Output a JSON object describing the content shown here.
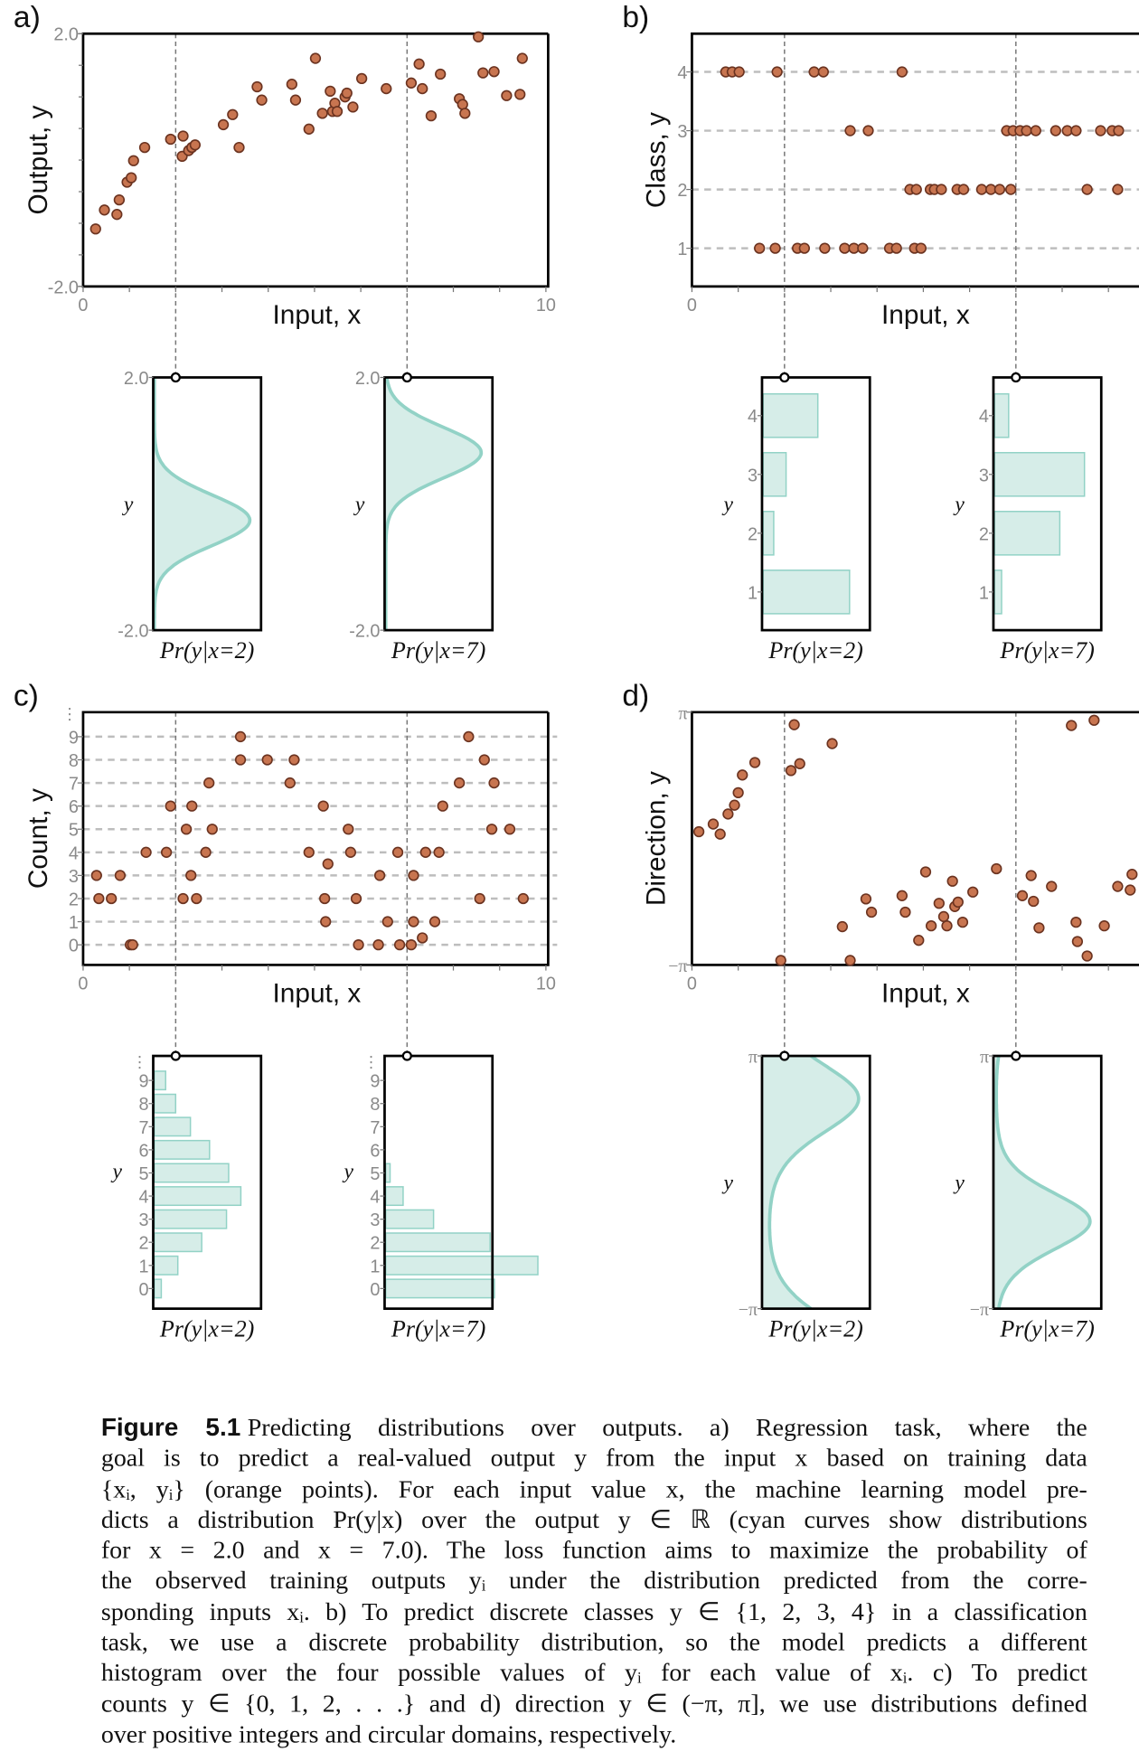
{
  "figure": {
    "label": "Figure 5.1",
    "caption_lines": [
      "Predicting distributions over outputs.  a) Regression task, where the",
      "goal is to predict a real-valued output y from the input x based on training data",
      "{xᵢ, yᵢ} (orange points). For each input value x, the machine learning model pre-",
      "dicts a distribution Pr(y|x) over the output y ∈ ℝ (cyan curves show distributions",
      "for x = 2.0 and x = 7.0).  The loss function aims to maximize the probability of",
      "the observed training outputs yᵢ under the distribution predicted from the corre-",
      "sponding inputs xᵢ.  b) To predict discrete classes y ∈ {1, 2, 3, 4} in a classification",
      "task, we use a discrete probability distribution, so the model predicts a different",
      "histogram over the four possible values of yᵢ for each value of xᵢ.  c) To predict",
      "counts y ∈ {0, 1, 2, . . .} and d) direction y ∈ (−π, π], we use distributions defined",
      "over positive integers and circular domains, respectively."
    ]
  },
  "colors": {
    "points_fill": "#c87550",
    "points_stroke": "#6b3320",
    "dist_fill": "#d6ede8",
    "dist_stroke": "#92d2c6",
    "tick_text": "#8a8a8a"
  },
  "chart_data": [
    {
      "panel": "a)",
      "type": "scatter",
      "task": "regression",
      "xlabel": "Input, x",
      "ylabel": "Output, y",
      "xlim": [
        0,
        10
      ],
      "ylim": [
        -2,
        2
      ],
      "xticks": [
        {
          "v": 0,
          "label": "0"
        },
        {
          "v": 10,
          "label": "10"
        }
      ],
      "yticks": [
        {
          "v": 2,
          "label": "2.0"
        },
        {
          "v": -2,
          "label": "-2.0"
        }
      ],
      "points": [
        [
          0.27,
          -1.09
        ],
        [
          0.46,
          -0.79
        ],
        [
          0.73,
          -0.86
        ],
        [
          0.78,
          -0.63
        ],
        [
          0.95,
          -0.35
        ],
        [
          1.04,
          -0.28
        ],
        [
          1.09,
          -0.01
        ],
        [
          1.33,
          0.2
        ],
        [
          1.89,
          0.33
        ],
        [
          2.14,
          0.06
        ],
        [
          2.16,
          0.38
        ],
        [
          2.28,
          0.15
        ],
        [
          2.35,
          0.2
        ],
        [
          2.42,
          0.24
        ],
        [
          3.03,
          0.56
        ],
        [
          3.23,
          0.72
        ],
        [
          3.37,
          0.2
        ],
        [
          3.76,
          1.16
        ],
        [
          3.86,
          0.95
        ],
        [
          4.51,
          1.2
        ],
        [
          4.59,
          0.95
        ],
        [
          4.88,
          0.49
        ],
        [
          5.02,
          1.61
        ],
        [
          5.17,
          0.74
        ],
        [
          5.34,
          1.09
        ],
        [
          5.39,
          0.77
        ],
        [
          5.44,
          0.9
        ],
        [
          5.49,
          0.77
        ],
        [
          5.66,
          1.0
        ],
        [
          5.7,
          1.06
        ],
        [
          5.83,
          0.84
        ],
        [
          6.02,
          1.29
        ],
        [
          6.55,
          1.13
        ],
        [
          7.09,
          1.22
        ],
        [
          7.26,
          1.52
        ],
        [
          7.33,
          1.13
        ],
        [
          7.52,
          0.7
        ],
        [
          7.72,
          1.36
        ],
        [
          8.13,
          0.97
        ],
        [
          8.2,
          0.88
        ],
        [
          8.25,
          0.74
        ],
        [
          8.54,
          1.95
        ],
        [
          8.64,
          1.38
        ],
        [
          8.88,
          1.4
        ],
        [
          9.15,
          1.02
        ],
        [
          9.44,
          1.04
        ],
        [
          9.49,
          1.61
        ]
      ],
      "slices": [
        {
          "x": 2,
          "label": "Pr(y|x=2)",
          "ylabel": "y",
          "yticks": [
            {
              "v": 2,
              "label": "2.0"
            },
            {
              "v": -2,
              "label": "-2.0"
            }
          ],
          "dist": {
            "kind": "normal",
            "mean": -0.26,
            "sd": 0.4
          }
        },
        {
          "x": 7,
          "label": "Pr(y|x=7)",
          "ylabel": "y",
          "yticks": [
            {
              "v": 2,
              "label": "2.0"
            },
            {
              "v": -2,
              "label": "-2.0"
            }
          ],
          "dist": {
            "kind": "normal",
            "mean": 0.81,
            "sd": 0.4
          }
        }
      ]
    },
    {
      "panel": "b)",
      "type": "scatter",
      "task": "classification",
      "xlabel": "Input, x",
      "ylabel": "Class, y",
      "xlim": [
        0,
        10
      ],
      "ylim": [
        0.35,
        4.65
      ],
      "levels": [
        1,
        2,
        3,
        4
      ],
      "xticks": [
        {
          "v": 0,
          "label": "0"
        }
      ],
      "yticks": [
        {
          "v": 1,
          "label": "1"
        },
        {
          "v": 2,
          "label": "2"
        },
        {
          "v": 3,
          "label": "3"
        },
        {
          "v": 4,
          "label": "4"
        }
      ],
      "points": [
        [
          0.73,
          4
        ],
        [
          0.87,
          4
        ],
        [
          1.02,
          4
        ],
        [
          1.84,
          4
        ],
        [
          2.64,
          4
        ],
        [
          2.84,
          4
        ],
        [
          4.54,
          4
        ],
        [
          3.42,
          3
        ],
        [
          3.81,
          3
        ],
        [
          6.8,
          3
        ],
        [
          6.94,
          3
        ],
        [
          7.09,
          3
        ],
        [
          7.23,
          3
        ],
        [
          7.43,
          3
        ],
        [
          7.86,
          3
        ],
        [
          8.11,
          3
        ],
        [
          8.3,
          3
        ],
        [
          8.83,
          3
        ],
        [
          9.08,
          3
        ],
        [
          9.22,
          3
        ],
        [
          4.71,
          2
        ],
        [
          4.85,
          2
        ],
        [
          5.15,
          2
        ],
        [
          5.24,
          2
        ],
        [
          5.39,
          2
        ],
        [
          5.73,
          2
        ],
        [
          5.87,
          2
        ],
        [
          6.26,
          2
        ],
        [
          6.46,
          2
        ],
        [
          6.65,
          2
        ],
        [
          6.89,
          2
        ],
        [
          8.54,
          2
        ],
        [
          9.2,
          2
        ],
        [
          1.46,
          1
        ],
        [
          1.8,
          1
        ],
        [
          2.28,
          1
        ],
        [
          2.43,
          1
        ],
        [
          2.87,
          1
        ],
        [
          3.3,
          1
        ],
        [
          3.5,
          1
        ],
        [
          3.69,
          1
        ],
        [
          4.27,
          1
        ],
        [
          4.42,
          1
        ],
        [
          4.81,
          1
        ],
        [
          4.95,
          1
        ]
      ],
      "slices": [
        {
          "x": 2,
          "label": "Pr(y|x=2)",
          "ylabel": "y",
          "yticks": [
            {
              "v": 1,
              "label": "1"
            },
            {
              "v": 2,
              "label": "2"
            },
            {
              "v": 3,
              "label": "3"
            },
            {
              "v": 4,
              "label": "4"
            }
          ],
          "dist": {
            "kind": "categorical",
            "values": [
              1,
              2,
              3,
              4
            ],
            "probs": [
              0.49,
              0.06,
              0.13,
              0.31
            ]
          }
        },
        {
          "x": 7,
          "label": "Pr(y|x=7)",
          "ylabel": "y",
          "yticks": [
            {
              "v": 1,
              "label": "1"
            },
            {
              "v": 2,
              "label": "2"
            },
            {
              "v": 3,
              "label": "3"
            },
            {
              "v": 4,
              "label": "4"
            }
          ],
          "dist": {
            "kind": "categorical",
            "values": [
              1,
              2,
              3,
              4
            ],
            "probs": [
              0.04,
              0.37,
              0.51,
              0.08
            ]
          }
        }
      ]
    },
    {
      "panel": "c)",
      "type": "scatter",
      "task": "count",
      "xlabel": "Input, x",
      "ylabel": "Count, y",
      "xlim": [
        0,
        10
      ],
      "ylim": [
        -0.87,
        10.06
      ],
      "levels": [
        0,
        1,
        2,
        3,
        4,
        5,
        6,
        7,
        8,
        9
      ],
      "xticks": [
        {
          "v": 0,
          "label": "0"
        },
        {
          "v": 10,
          "label": "10"
        }
      ],
      "yticks": [
        {
          "v": 0,
          "label": "0"
        },
        {
          "v": 1,
          "label": "1"
        },
        {
          "v": 2,
          "label": "2"
        },
        {
          "v": 3,
          "label": "3"
        },
        {
          "v": 4,
          "label": "4"
        },
        {
          "v": 5,
          "label": "5"
        },
        {
          "v": 6,
          "label": "6"
        },
        {
          "v": 7,
          "label": "7"
        },
        {
          "v": 8,
          "label": "8"
        },
        {
          "v": 9,
          "label": "9"
        }
      ],
      "ellipsis": "⋮",
      "points": [
        [
          0.29,
          3
        ],
        [
          0.34,
          2
        ],
        [
          0.61,
          2
        ],
        [
          0.8,
          3
        ],
        [
          1.02,
          0
        ],
        [
          1.07,
          0
        ],
        [
          1.36,
          4
        ],
        [
          1.8,
          4
        ],
        [
          1.89,
          6
        ],
        [
          2.16,
          2
        ],
        [
          2.23,
          5
        ],
        [
          2.35,
          6
        ],
        [
          2.33,
          3
        ],
        [
          2.45,
          2
        ],
        [
          2.65,
          4
        ],
        [
          2.72,
          7
        ],
        [
          2.79,
          5
        ],
        [
          3.4,
          9
        ],
        [
          3.4,
          8
        ],
        [
          3.98,
          8
        ],
        [
          4.47,
          7
        ],
        [
          4.56,
          8
        ],
        [
          4.88,
          4
        ],
        [
          5.19,
          6
        ],
        [
          5.22,
          2
        ],
        [
          5.24,
          1
        ],
        [
          5.29,
          3.5
        ],
        [
          5.73,
          5
        ],
        [
          5.78,
          4
        ],
        [
          5.9,
          2
        ],
        [
          5.95,
          0
        ],
        [
          6.38,
          0
        ],
        [
          6.41,
          3
        ],
        [
          6.58,
          1
        ],
        [
          6.8,
          4
        ],
        [
          6.84,
          0
        ],
        [
          7.09,
          0
        ],
        [
          7.14,
          3
        ],
        [
          7.14,
          1
        ],
        [
          7.33,
          0.3
        ],
        [
          7.4,
          4
        ],
        [
          7.6,
          1
        ],
        [
          7.69,
          4
        ],
        [
          7.77,
          6
        ],
        [
          8.13,
          7
        ],
        [
          8.33,
          9
        ],
        [
          8.57,
          2
        ],
        [
          8.67,
          8
        ],
        [
          8.88,
          7
        ],
        [
          8.83,
          5
        ],
        [
          9.22,
          5
        ],
        [
          9.51,
          2
        ]
      ],
      "slices": [
        {
          "x": 2,
          "label": "Pr(y|x=2)",
          "ylabel": "y",
          "yticks": [
            {
              "v": 0,
              "label": "0"
            },
            {
              "v": 1,
              "label": "1"
            },
            {
              "v": 2,
              "label": "2"
            },
            {
              "v": 3,
              "label": "3"
            },
            {
              "v": 4,
              "label": "4"
            },
            {
              "v": 5,
              "label": "5"
            },
            {
              "v": 6,
              "label": "6"
            },
            {
              "v": 7,
              "label": "7"
            },
            {
              "v": 8,
              "label": "8"
            },
            {
              "v": 9,
              "label": "9"
            }
          ],
          "dist": {
            "kind": "categorical",
            "values": [
              0,
              1,
              2,
              3,
              4,
              5,
              6,
              7,
              8,
              9
            ],
            "probs": [
              0.016,
              0.054,
              0.109,
              0.166,
              0.199,
              0.171,
              0.127,
              0.083,
              0.049,
              0.026
            ]
          }
        },
        {
          "x": 7,
          "label": "Pr(y|x=7)",
          "ylabel": "y",
          "yticks": [
            {
              "v": 0,
              "label": "0"
            },
            {
              "v": 1,
              "label": "1"
            },
            {
              "v": 2,
              "label": "2"
            },
            {
              "v": 3,
              "label": "3"
            },
            {
              "v": 4,
              "label": "4"
            },
            {
              "v": 5,
              "label": "5"
            },
            {
              "v": 6,
              "label": "6"
            },
            {
              "v": 7,
              "label": "7"
            },
            {
              "v": 8,
              "label": "8"
            },
            {
              "v": 9,
              "label": "9"
            }
          ],
          "dist": {
            "kind": "categorical",
            "values": [
              0,
              1,
              2,
              3,
              4,
              5,
              6,
              7,
              8,
              9
            ],
            "probs": [
              0.25,
              0.35,
              0.24,
              0.11,
              0.04,
              0.01,
              0,
              0,
              0,
              0
            ]
          }
        }
      ]
    },
    {
      "panel": "d)",
      "type": "scatter",
      "task": "direction",
      "xlabel": "Input, x",
      "ylabel": "Direction, y",
      "xlim": [
        0,
        10
      ],
      "ylim": [
        -3.14159,
        3.14159
      ],
      "xticks": [
        {
          "v": 0,
          "label": "0"
        }
      ],
      "yticks": [
        {
          "v": 3.14159,
          "label": "π"
        },
        {
          "v": -3.14159,
          "label": "−π"
        }
      ],
      "points": [
        [
          0.15,
          0.17
        ],
        [
          0.46,
          0.36
        ],
        [
          0.61,
          0.11
        ],
        [
          0.78,
          0.61
        ],
        [
          0.92,
          0.83
        ],
        [
          1.0,
          1.14
        ],
        [
          1.09,
          1.58
        ],
        [
          1.36,
          1.89
        ],
        [
          1.92,
          -3.03
        ],
        [
          2.14,
          1.69
        ],
        [
          2.21,
          2.83
        ],
        [
          2.33,
          1.86
        ],
        [
          3.03,
          2.36
        ],
        [
          3.25,
          -2.19
        ],
        [
          3.42,
          -3.03
        ],
        [
          3.76,
          -1.5
        ],
        [
          3.88,
          -1.83
        ],
        [
          4.54,
          -1.42
        ],
        [
          4.61,
          -1.83
        ],
        [
          4.9,
          -2.53
        ],
        [
          5.05,
          -0.83
        ],
        [
          5.17,
          -2.17
        ],
        [
          5.34,
          -1.61
        ],
        [
          5.44,
          -1.94
        ],
        [
          5.51,
          -2.17
        ],
        [
          5.63,
          -1.06
        ],
        [
          5.68,
          -1.69
        ],
        [
          5.75,
          -1.58
        ],
        [
          5.85,
          -2.08
        ],
        [
          6.07,
          -1.33
        ],
        [
          6.58,
          -0.75
        ],
        [
          7.14,
          -1.42
        ],
        [
          7.33,
          -0.92
        ],
        [
          7.38,
          -1.56
        ],
        [
          7.5,
          -2.22
        ],
        [
          7.77,
          -1.19
        ],
        [
          8.2,
          2.81
        ],
        [
          8.3,
          -2.08
        ],
        [
          8.33,
          -2.56
        ],
        [
          8.54,
          -2.92
        ],
        [
          8.69,
          2.94
        ],
        [
          8.91,
          -2.17
        ],
        [
          9.2,
          -1.19
        ],
        [
          9.47,
          -1.28
        ],
        [
          9.51,
          -0.89
        ]
      ],
      "slices": [
        {
          "x": 2,
          "label": "Pr(y|x=2)",
          "ylabel": "y",
          "yticks": [
            {
              "v": 3.14159,
              "label": "π"
            },
            {
              "v": -3.14159,
              "label": "−π"
            }
          ],
          "dist": {
            "kind": "von_mises",
            "mu": 2.08,
            "kappa": 1.35
          }
        },
        {
          "x": 7,
          "label": "Pr(y|x=7)",
          "ylabel": "y",
          "yticks": [
            {
              "v": 3.14159,
              "label": "π"
            },
            {
              "v": -3.14159,
              "label": "−π"
            }
          ],
          "dist": {
            "kind": "von_mises",
            "mu": -0.97,
            "kappa": 2.0
          }
        }
      ]
    }
  ]
}
